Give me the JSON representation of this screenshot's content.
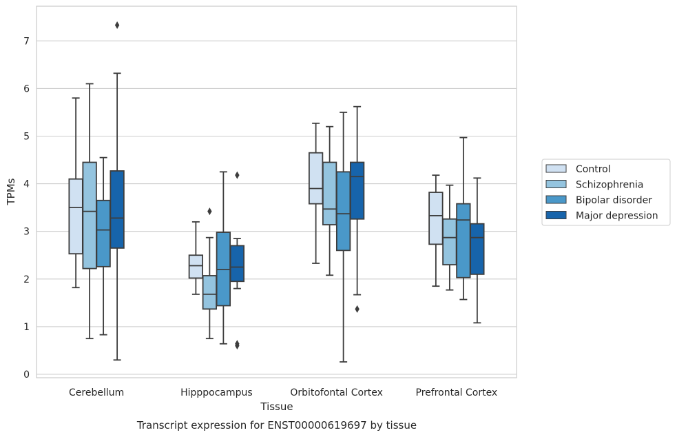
{
  "chart_data": {
    "type": "box",
    "title": "",
    "caption": "Transcript expression for ENST00000619697 by tissue",
    "xlabel": "Tissue",
    "ylabel": "TPMs",
    "ylim": [
      -0.1,
      7.7
    ],
    "yticks": [
      0,
      1,
      2,
      3,
      4,
      5,
      6,
      7
    ],
    "grid": true,
    "legend_position": "right",
    "categories": [
      "Cerebellum",
      "Hipppocampus",
      "Orbitofontal Cortex",
      "Prefrontal Cortex"
    ],
    "series": [
      {
        "name": "Control",
        "color": "#d0e1f2",
        "boxes": [
          {
            "whislo": 1.82,
            "q1": 2.53,
            "med": 3.5,
            "q3": 4.1,
            "whishi": 5.8,
            "fliers": []
          },
          {
            "whislo": 1.68,
            "q1": 2.02,
            "med": 2.28,
            "q3": 2.5,
            "whishi": 3.2,
            "fliers": []
          },
          {
            "whislo": 2.33,
            "q1": 3.58,
            "med": 3.9,
            "q3": 4.65,
            "whishi": 5.27,
            "fliers": []
          },
          {
            "whislo": 1.85,
            "q1": 2.73,
            "med": 3.33,
            "q3": 3.82,
            "whishi": 4.18,
            "fliers": []
          }
        ]
      },
      {
        "name": "Schizophrenia",
        "color": "#94c4df",
        "boxes": [
          {
            "whislo": 0.75,
            "q1": 2.22,
            "med": 3.42,
            "q3": 4.45,
            "whishi": 6.1,
            "fliers": []
          },
          {
            "whislo": 0.75,
            "q1": 1.37,
            "med": 1.68,
            "q3": 2.07,
            "whishi": 2.87,
            "fliers": [
              3.42
            ]
          },
          {
            "whislo": 2.08,
            "q1": 3.14,
            "med": 3.47,
            "q3": 4.45,
            "whishi": 5.2,
            "fliers": []
          },
          {
            "whislo": 1.77,
            "q1": 2.3,
            "med": 2.87,
            "q3": 3.26,
            "whishi": 3.97,
            "fliers": []
          }
        ]
      },
      {
        "name": "Bipolar disorder",
        "color": "#4a98c9",
        "boxes": [
          {
            "whislo": 0.83,
            "q1": 2.26,
            "med": 3.03,
            "q3": 3.65,
            "whishi": 4.55,
            "fliers": []
          },
          {
            "whislo": 0.64,
            "q1": 1.44,
            "med": 2.2,
            "q3": 2.98,
            "whishi": 4.25,
            "fliers": []
          },
          {
            "whislo": 0.26,
            "q1": 2.6,
            "med": 3.37,
            "q3": 4.25,
            "whishi": 5.5,
            "fliers": []
          },
          {
            "whislo": 1.57,
            "q1": 2.03,
            "med": 3.24,
            "q3": 3.58,
            "whishi": 4.97,
            "fliers": []
          }
        ]
      },
      {
        "name": "Major depression",
        "color": "#1764ab",
        "boxes": [
          {
            "whislo": 0.3,
            "q1": 2.65,
            "med": 3.28,
            "q3": 4.27,
            "whishi": 6.32,
            "fliers": [
              7.33
            ]
          },
          {
            "whislo": 1.8,
            "q1": 1.95,
            "med": 2.25,
            "q3": 2.7,
            "whishi": 2.85,
            "fliers": [
              0.6,
              0.64,
              4.18
            ]
          },
          {
            "whislo": 1.67,
            "q1": 3.26,
            "med": 4.15,
            "q3": 4.45,
            "whishi": 5.62,
            "fliers": [
              1.37
            ]
          },
          {
            "whislo": 1.08,
            "q1": 2.1,
            "med": 2.87,
            "q3": 3.16,
            "whishi": 4.12,
            "fliers": []
          }
        ]
      }
    ]
  }
}
